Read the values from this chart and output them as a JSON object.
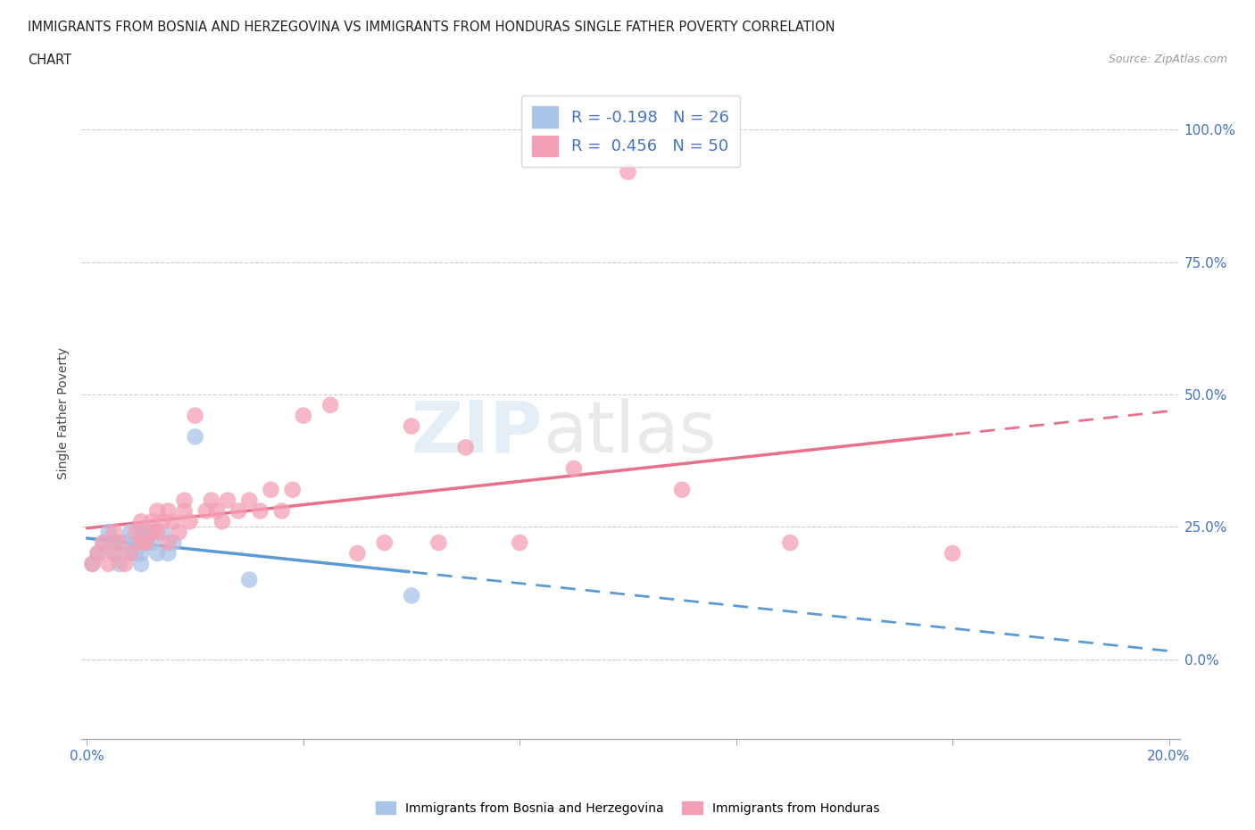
{
  "title_line1": "IMMIGRANTS FROM BOSNIA AND HERZEGOVINA VS IMMIGRANTS FROM HONDURAS SINGLE FATHER POVERTY CORRELATION",
  "title_line2": "CHART",
  "source": "Source: ZipAtlas.com",
  "ylabel": "Single Father Poverty",
  "yticks": [
    "0.0%",
    "25.0%",
    "50.0%",
    "75.0%",
    "100.0%"
  ],
  "ytick_vals": [
    0.0,
    0.25,
    0.5,
    0.75,
    1.0
  ],
  "r_bosnia": -0.198,
  "n_bosnia": 26,
  "r_honduras": 0.456,
  "n_honduras": 50,
  "color_bosnia": "#a8c4e8",
  "color_honduras": "#f4a0b4",
  "color_text_blue": "#4472c4",
  "color_trendline_bosnia": "#5b9bd5",
  "color_trendline_honduras": "#e8708a",
  "bosnia_x": [
    0.001,
    0.002,
    0.003,
    0.004,
    0.005,
    0.005,
    0.006,
    0.007,
    0.008,
    0.008,
    0.009,
    0.009,
    0.01,
    0.01,
    0.01,
    0.011,
    0.011,
    0.012,
    0.012,
    0.013,
    0.014,
    0.015,
    0.016,
    0.02,
    0.03,
    0.06
  ],
  "bosnia_y": [
    0.18,
    0.2,
    0.22,
    0.24,
    0.2,
    0.22,
    0.18,
    0.22,
    0.2,
    0.24,
    0.2,
    0.22,
    0.18,
    0.2,
    0.24,
    0.22,
    0.24,
    0.22,
    0.24,
    0.2,
    0.24,
    0.2,
    0.22,
    0.42,
    0.15,
    0.12
  ],
  "honduras_x": [
    0.001,
    0.002,
    0.003,
    0.004,
    0.005,
    0.005,
    0.006,
    0.007,
    0.008,
    0.009,
    0.01,
    0.01,
    0.011,
    0.012,
    0.012,
    0.013,
    0.013,
    0.014,
    0.015,
    0.015,
    0.016,
    0.017,
    0.018,
    0.018,
    0.019,
    0.02,
    0.022,
    0.023,
    0.024,
    0.025,
    0.026,
    0.028,
    0.03,
    0.032,
    0.034,
    0.036,
    0.038,
    0.04,
    0.045,
    0.05,
    0.055,
    0.06,
    0.065,
    0.07,
    0.08,
    0.09,
    0.1,
    0.11,
    0.13,
    0.16
  ],
  "honduras_y": [
    0.18,
    0.2,
    0.22,
    0.18,
    0.2,
    0.24,
    0.22,
    0.18,
    0.2,
    0.24,
    0.22,
    0.26,
    0.22,
    0.24,
    0.26,
    0.24,
    0.28,
    0.26,
    0.22,
    0.28,
    0.26,
    0.24,
    0.28,
    0.3,
    0.26,
    0.46,
    0.28,
    0.3,
    0.28,
    0.26,
    0.3,
    0.28,
    0.3,
    0.28,
    0.32,
    0.28,
    0.32,
    0.46,
    0.48,
    0.2,
    0.22,
    0.44,
    0.22,
    0.4,
    0.22,
    0.36,
    0.92,
    0.32,
    0.22,
    0.2
  ],
  "xlim_min": -0.001,
  "xlim_max": 0.202,
  "ylim_min": -0.15,
  "ylim_max": 1.08
}
